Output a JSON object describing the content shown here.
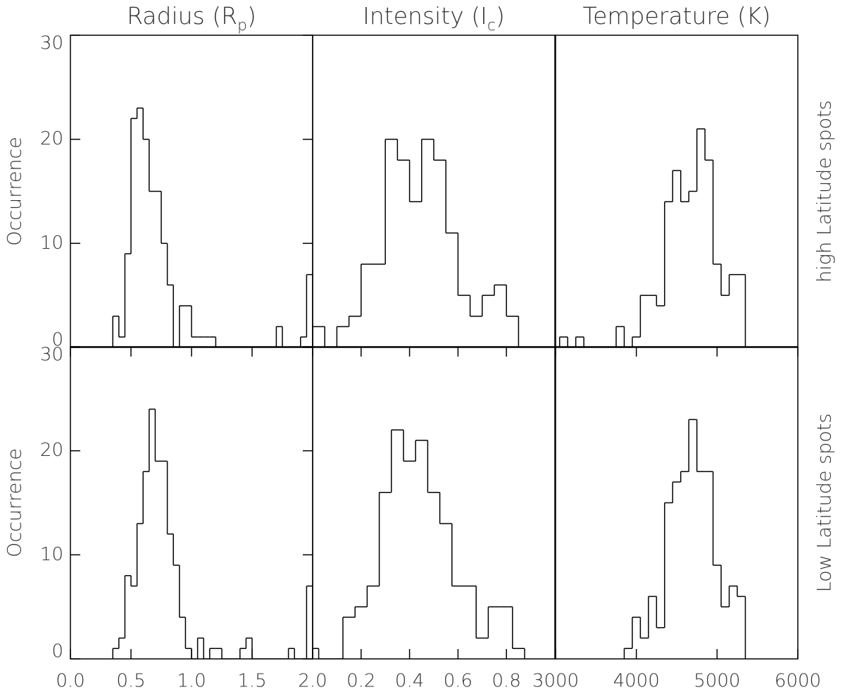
{
  "chart_data": [
    {
      "type": "histogram",
      "title": {
        "main": "Radius (R",
        "sub": "p",
        "end": ")"
      },
      "ylabel": "Occurrence",
      "bins": [
        0.35,
        0.4,
        0.45,
        0.5,
        0.55,
        0.6,
        0.65,
        0.7,
        0.75,
        0.8,
        0.85,
        0.9,
        0.95,
        1.0,
        1.05,
        1.1,
        1.15,
        1.2,
        1.25,
        1.3,
        1.35,
        1.4,
        1.45,
        1.5,
        1.55,
        1.6,
        1.65,
        1.7,
        1.75,
        1.8,
        1.85,
        1.9,
        1.95,
        2.0
      ],
      "counts": [
        3,
        1,
        9,
        22,
        23,
        20,
        15,
        15,
        10,
        6,
        0,
        4,
        4,
        1,
        1,
        1,
        1,
        0,
        0,
        0,
        0,
        0,
        0,
        0,
        0,
        0,
        0,
        2,
        0,
        0,
        0,
        1,
        7
      ],
      "xlim": [
        0,
        2
      ],
      "ylim": [
        0,
        30
      ],
      "yticks": [
        0,
        10,
        20,
        30
      ],
      "color": "#000000"
    },
    {
      "type": "histogram",
      "title": {
        "main": "Intensity (I",
        "sub": "c",
        "end": ")"
      },
      "bins": [
        0,
        0.05,
        0.1,
        0.15,
        0.2,
        0.25,
        0.3,
        0.35,
        0.4,
        0.45,
        0.5,
        0.55,
        0.6,
        0.65,
        0.7,
        0.75,
        0.8,
        0.85
      ],
      "counts": [
        2,
        0,
        2,
        3,
        8,
        8,
        20,
        18,
        14,
        20,
        18,
        11,
        5,
        3,
        5,
        6,
        3
      ],
      "xlim": [
        0,
        1
      ],
      "ylim": [
        0,
        30
      ],
      "color": "#000000"
    },
    {
      "type": "histogram",
      "title": {
        "main": "Temperature (K)"
      },
      "right_label": "high Latitude spots",
      "bins": [
        3050,
        3150,
        3250,
        3350,
        3450,
        3550,
        3650,
        3750,
        3850,
        3950,
        4050,
        4150,
        4250,
        4350,
        4450,
        4550,
        4650,
        4750,
        4850,
        4950,
        5050,
        5150,
        5250,
        5350
      ],
      "counts": [
        1,
        0,
        1,
        0,
        0,
        0,
        0,
        2,
        0,
        1,
        5,
        5,
        4,
        14,
        17,
        14,
        15,
        21,
        18,
        8,
        5,
        7,
        7
      ],
      "xlim": [
        3000,
        6000
      ],
      "ylim": [
        0,
        30
      ],
      "color": "#000000"
    },
    {
      "type": "histogram",
      "ylabel": "Occurrence",
      "bins": [
        0.35,
        0.4,
        0.45,
        0.5,
        0.55,
        0.6,
        0.65,
        0.7,
        0.75,
        0.8,
        0.85,
        0.9,
        0.95,
        1.0,
        1.05,
        1.1,
        1.15,
        1.2,
        1.25,
        1.3,
        1.35,
        1.4,
        1.45,
        1.5,
        1.55,
        1.6,
        1.65,
        1.7,
        1.75,
        1.8,
        1.85,
        1.9,
        1.95,
        2.0
      ],
      "counts": [
        1,
        2,
        8,
        7,
        13,
        18,
        24,
        19,
        19,
        12,
        9,
        4,
        1,
        0,
        2,
        0,
        1,
        1,
        0,
        0,
        0,
        1,
        2,
        0,
        0,
        0,
        0,
        0,
        0,
        1,
        0,
        0,
        7
      ],
      "xlim": [
        0,
        2
      ],
      "ylim": [
        0,
        30
      ],
      "yticks": [
        0,
        10,
        20,
        30
      ],
      "xticks": [
        {
          "value": 0,
          "label": "0.0"
        },
        0.5,
        {
          "value": 1,
          "label": "1.0"
        },
        1.5,
        {
          "value": 2,
          "label": "2.0"
        }
      ],
      "color": "#000000"
    },
    {
      "type": "histogram",
      "bins": [
        -0.025,
        0.025,
        0.075,
        0.125,
        0.175,
        0.225,
        0.275,
        0.325,
        0.375,
        0.425,
        0.475,
        0.525,
        0.575,
        0.625,
        0.675,
        0.725,
        0.775,
        0.825,
        0.875
      ],
      "counts": [
        1,
        0,
        0,
        4,
        5,
        7,
        16,
        22,
        19,
        21,
        16,
        13,
        7,
        7,
        2,
        5,
        5,
        1
      ],
      "xlim": [
        0,
        1
      ],
      "ylim": [
        0,
        30
      ],
      "xticks": [
        0.2,
        0.4,
        0.6,
        0.8
      ],
      "color": "#000000"
    },
    {
      "type": "histogram",
      "right_label": "Low Latitude spots",
      "bins": [
        3850,
        3950,
        4050,
        4150,
        4250,
        4350,
        4450,
        4550,
        4650,
        4750,
        4850,
        4950,
        5050,
        5150,
        5250,
        5350
      ],
      "counts": [
        1,
        4,
        2,
        6,
        3,
        15,
        17,
        18,
        23,
        18,
        18,
        9,
        5,
        7,
        6
      ],
      "xlim": [
        3000,
        6000
      ],
      "ylim": [
        0,
        30
      ],
      "xticks": [
        3000,
        4000,
        5000,
        6000
      ],
      "color": "#000000"
    }
  ]
}
